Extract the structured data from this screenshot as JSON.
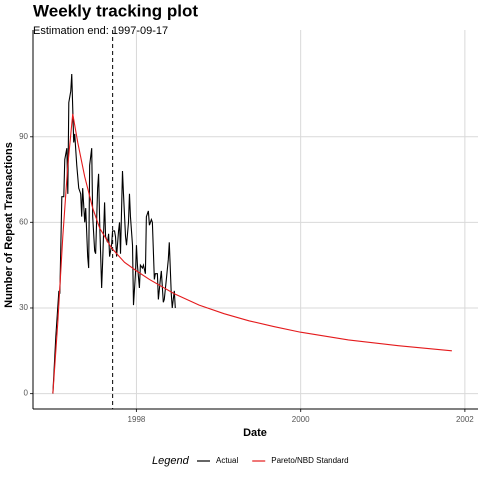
{
  "chart_data": {
    "type": "line",
    "title": "Weekly tracking plot",
    "subtitle": "Estimation end: 1997-09-17",
    "xlabel": "Date",
    "ylabel": "Number of Repeat Transactions",
    "legend_title": "Legend",
    "legend": "bottom",
    "grid": true,
    "xlim": [
      1996.74,
      2002.16
    ],
    "ylim": [
      -5.4,
      121.8
    ],
    "xticks": [
      1998,
      2000,
      2002
    ],
    "yticks": [
      0,
      30,
      60,
      90
    ],
    "vline": 1997.71,
    "series": [
      {
        "name": "Actual",
        "color": "#000000",
        "x": [
          1996.982,
          1997.018,
          1997.055,
          1997.067,
          1997.091,
          1997.115,
          1997.127,
          1997.152,
          1997.164,
          1997.176,
          1997.2,
          1997.212,
          1997.236,
          1997.248,
          1997.273,
          1997.297,
          1997.321,
          1997.333,
          1997.345,
          1997.37,
          1997.382,
          1997.406,
          1997.418,
          1997.43,
          1997.455,
          1997.467,
          1997.491,
          1997.503,
          1997.527,
          1997.539,
          1997.552,
          1997.576,
          1997.588,
          1997.612,
          1997.624,
          1997.648,
          1997.661,
          1997.673,
          1997.697,
          1997.709,
          1997.733,
          1997.745,
          1997.758,
          1997.782,
          1997.794,
          1997.806,
          1997.83,
          1997.842,
          1997.867,
          1997.879,
          1997.903,
          1997.915,
          1997.927,
          1997.952,
          1997.964,
          1997.988,
          1998.0,
          1998.012,
          1998.036,
          1998.048,
          1998.073,
          1998.085,
          1998.109,
          1998.121,
          1998.145,
          1998.158,
          1998.182,
          1998.194,
          1998.218,
          1998.23,
          1998.255,
          1998.267,
          1998.291,
          1998.303,
          1998.327,
          1998.339,
          1998.364,
          1998.388,
          1998.4,
          1998.424,
          1998.436,
          1998.461,
          1998.473
        ],
        "values": [
          0,
          20,
          36,
          35,
          69,
          69,
          82,
          86,
          70,
          102,
          106,
          112,
          88,
          91,
          80,
          72,
          70,
          62,
          72,
          60,
          65,
          48,
          44,
          80,
          86,
          62,
          50,
          49,
          72,
          77,
          60,
          37,
          46,
          67,
          55,
          53,
          56,
          48,
          52,
          57,
          57,
          55,
          48,
          57,
          60,
          49,
          78,
          70,
          55,
          52,
          60,
          70,
          62,
          52,
          31,
          42,
          52,
          45,
          37,
          45,
          44,
          45,
          42,
          62,
          64,
          59,
          61,
          60,
          40,
          42,
          42,
          33,
          40,
          43,
          32,
          33,
          40,
          47,
          53,
          35,
          30,
          36,
          30
        ]
      },
      {
        "name": "Pareto/NBD Standard",
        "color": "#e41a1c",
        "x": [
          1996.982,
          1997.042,
          1997.103,
          1997.164,
          1997.224,
          1997.285,
          1997.37,
          1997.467,
          1997.552,
          1997.697,
          1997.855,
          1998.0,
          1998.158,
          1998.461,
          1998.764,
          1999.067,
          1999.37,
          1999.673,
          2000.0,
          2000.582,
          2001.188,
          2001.842
        ],
        "values": [
          0,
          25,
          55,
          80,
          98,
          88,
          76,
          65,
          58,
          51,
          46,
          43,
          40,
          35,
          31,
          28,
          25.5,
          23.5,
          21.5,
          18.8,
          16.8,
          15
        ]
      }
    ]
  }
}
